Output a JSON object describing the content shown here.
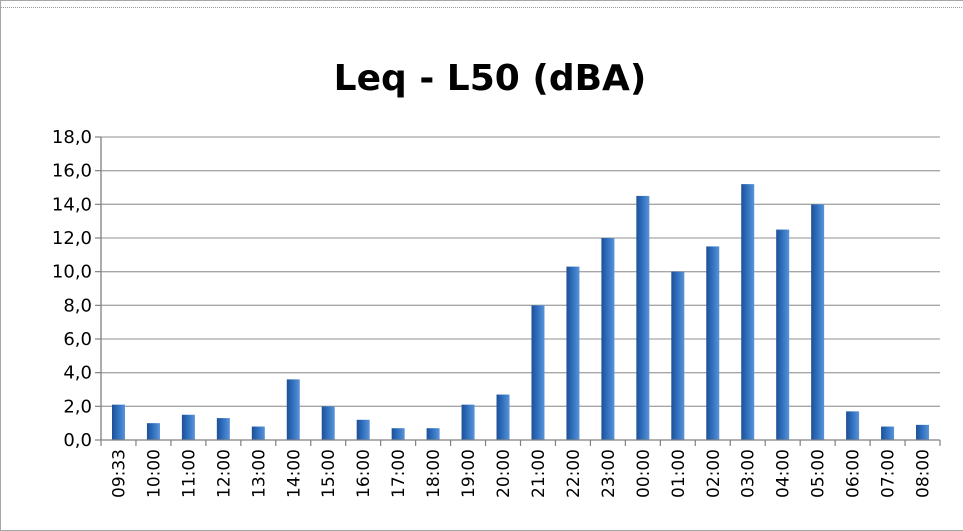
{
  "chart_data": {
    "type": "bar",
    "title": "Leq - L50 (dBA)",
    "xlabel": "",
    "ylabel": "",
    "categories": [
      "09:33",
      "10:00",
      "11:00",
      "12:00",
      "13:00",
      "14:00",
      "15:00",
      "16:00",
      "17:00",
      "18:00",
      "19:00",
      "20:00",
      "21:00",
      "22:00",
      "23:00",
      "00:00",
      "01:00",
      "02:00",
      "03:00",
      "04:00",
      "05:00",
      "06:00",
      "07:00",
      "08:00"
    ],
    "values": [
      2.1,
      1.0,
      1.5,
      1.3,
      0.8,
      3.6,
      2.0,
      1.2,
      0.7,
      0.7,
      2.1,
      2.7,
      8.0,
      10.3,
      12.0,
      14.5,
      10.0,
      11.5,
      15.2,
      12.5,
      14.0,
      1.7,
      0.8,
      0.9
    ],
    "ylim": [
      0,
      18
    ],
    "yticks": [
      "0,0",
      "2,0",
      "4,0",
      "6,0",
      "8,0",
      "10,0",
      "12,0",
      "14,0",
      "16,0",
      "18,0"
    ],
    "grid": true,
    "legend": "none",
    "bar_color": "#2e6fbd"
  }
}
